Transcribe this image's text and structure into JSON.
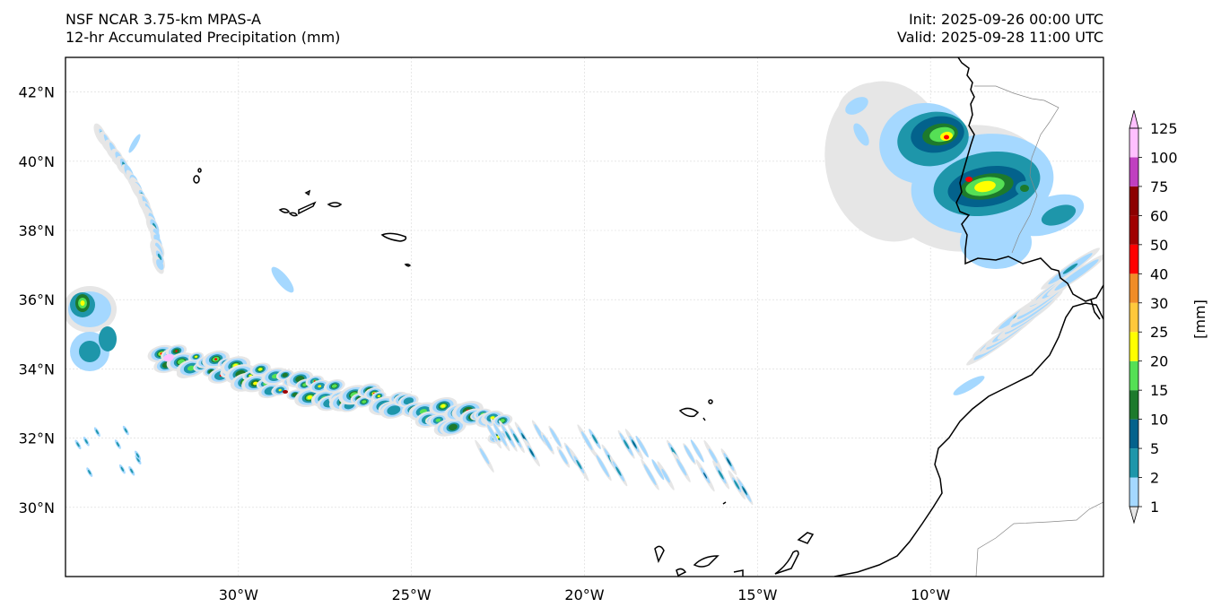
{
  "header": {
    "left_line1": "NSF NCAR 3.75-km MPAS-A",
    "left_line2": "12-hr Accumulated Precipitation (mm)",
    "right_line1": "Init: 2025-09-26 00:00 UTC",
    "right_line2": "Valid: 2025-09-28 11:00 UTC"
  },
  "map": {
    "lon_range": [
      -35,
      -5
    ],
    "lat_range": [
      28,
      43
    ],
    "lon_ticks": [
      {
        "value": -30,
        "label": "30°W"
      },
      {
        "value": -25,
        "label": "25°W"
      },
      {
        "value": -20,
        "label": "20°W"
      },
      {
        "value": -15,
        "label": "15°W"
      },
      {
        "value": -10,
        "label": "10°W"
      }
    ],
    "lat_ticks": [
      {
        "value": 42,
        "label": "42°N"
      },
      {
        "value": 40,
        "label": "40°N"
      },
      {
        "value": 38,
        "label": "38°N"
      },
      {
        "value": 36,
        "label": "36°N"
      },
      {
        "value": 34,
        "label": "34°N"
      },
      {
        "value": 32,
        "label": "32°N"
      },
      {
        "value": 30,
        "label": "30°N"
      }
    ]
  },
  "colorbar": {
    "unit_label": "[mm]",
    "levels": [
      "1",
      "2",
      "5",
      "10",
      "15",
      "20",
      "25",
      "30",
      "40",
      "50",
      "60",
      "75",
      "100",
      "125"
    ],
    "colors": [
      "#e6e6e6",
      "#a5d8ff",
      "#1e96aa",
      "#03628c",
      "#1d7a2c",
      "#55e055",
      "#ffff00",
      "#ffc83c",
      "#f08c28",
      "#ff0000",
      "#a00000",
      "#8c0000",
      "#c040c0",
      "#ffc0ff"
    ]
  },
  "precip_colors": {
    "light": "#e6e6e6",
    "blue": "#a5d8ff",
    "teal": "#1e96aa",
    "navy": "#03628c",
    "dgreen": "#1d7a2c",
    "green": "#55e055",
    "yellow": "#ffff00",
    "orange": "#f08c28",
    "red": "#ff0000",
    "dred": "#a00000",
    "pink": "#ffc0ff"
  }
}
